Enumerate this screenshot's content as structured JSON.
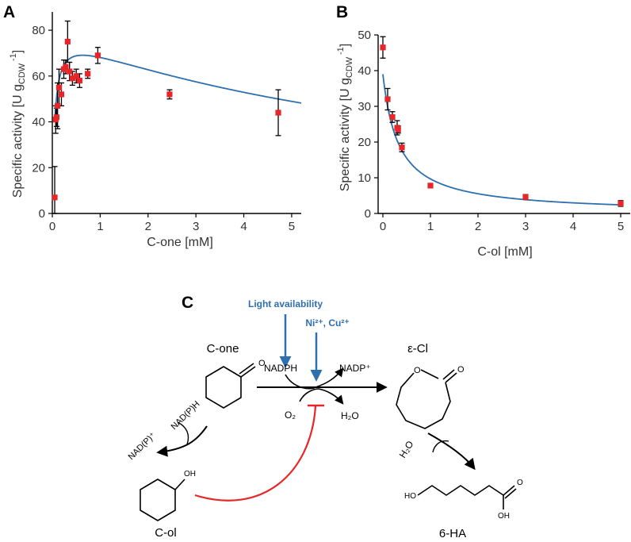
{
  "chart_data": [
    {
      "panel": "A",
      "type": "scatter",
      "xlabel": "C-one [mM]",
      "ylabel_main": "Specific activity [U g",
      "ylabel_sub": "CDW",
      "ylabel_sup": "-1",
      "ylabel_close": "]",
      "xlim": [
        0,
        5.2
      ],
      "ylim": [
        0,
        88
      ],
      "xticks": [
        0,
        1,
        2,
        3,
        4,
        5
      ],
      "yticks": [
        0,
        20,
        40,
        60,
        80
      ],
      "points": [
        {
          "x": 0.05,
          "y": 7,
          "err": 13.5
        },
        {
          "x": 0.07,
          "y": 41,
          "err": 6
        },
        {
          "x": 0.09,
          "y": 42,
          "err": 4
        },
        {
          "x": 0.11,
          "y": 47,
          "err": 10
        },
        {
          "x": 0.14,
          "y": 55,
          "err": 8
        },
        {
          "x": 0.19,
          "y": 52,
          "err": 5
        },
        {
          "x": 0.24,
          "y": 63,
          "err": 4
        },
        {
          "x": 0.28,
          "y": 64,
          "err": 3
        },
        {
          "x": 0.32,
          "y": 75,
          "err": 9
        },
        {
          "x": 0.36,
          "y": 62,
          "err": 4
        },
        {
          "x": 0.42,
          "y": 59,
          "err": 3
        },
        {
          "x": 0.5,
          "y": 60,
          "err": 3
        },
        {
          "x": 0.57,
          "y": 58,
          "err": 3
        },
        {
          "x": 0.74,
          "y": 61,
          "err": 2
        },
        {
          "x": 0.95,
          "y": 69,
          "err": 3.5
        },
        {
          "x": 2.45,
          "y": 52,
          "err": 2
        },
        {
          "x": 4.72,
          "y": 44,
          "err": 10
        }
      ],
      "fit": {
        "model": "substrate-inhibition",
        "vmax": 80,
        "km": 0.05,
        "ki": 8.0,
        "offset": 0
      }
    },
    {
      "panel": "B",
      "type": "scatter",
      "xlabel": "C-ol [mM]",
      "ylabel_main": "Specific activity [U g",
      "ylabel_sub": "CDW",
      "ylabel_sup": "-1",
      "ylabel_close": "]",
      "xlim": [
        -0.1,
        5.2
      ],
      "ylim": [
        0,
        50
      ],
      "xticks": [
        0,
        1,
        2,
        3,
        4,
        5
      ],
      "yticks": [
        0,
        10,
        20,
        30,
        40,
        50
      ],
      "points": [
        {
          "x": 0.0,
          "y": 46.5,
          "err": 3
        },
        {
          "x": 0.1,
          "y": 32,
          "err": 3
        },
        {
          "x": 0.2,
          "y": 27,
          "err": 1.5
        },
        {
          "x": 0.3,
          "y": 24,
          "err": 2
        },
        {
          "x": 0.32,
          "y": 23.5,
          "err": 1
        },
        {
          "x": 0.4,
          "y": 18.5,
          "err": 1.2
        },
        {
          "x": 1.0,
          "y": 7.8,
          "err": 0.6
        },
        {
          "x": 3.0,
          "y": 4.6,
          "err": 0.7
        },
        {
          "x": 5.0,
          "y": 2.8,
          "err": 0.8
        }
      ],
      "fit": {
        "model": "inhibition",
        "v0": 39,
        "ic50": 0.33
      }
    }
  ],
  "scheme": {
    "panel_letter": "C",
    "light_availability": "Light availability",
    "metal_ions": "Ni²⁺, Cu²⁺",
    "c_one": "C-one",
    "e_cl": "ε-Cl",
    "nadph": "NADPH",
    "nadp_plus": "NADP⁺",
    "o2": "O₂",
    "h2o": "H₂O",
    "nadph_branch": "NAD(P)H",
    "nadp_branch": "NAD(P)⁺",
    "c_ol": "C-ol",
    "oh": "OH",
    "h2o_hydrolysis": "H₂O",
    "six_ha": "6-HA",
    "ho": "HO",
    "acid_oh": "OH",
    "o_ketone": "O",
    "o_ring": "O",
    "o_lactone": "O",
    "o_acid": "O",
    "colors": {
      "blue": "#2e6fad",
      "red": "#e8262a",
      "black": "#000000"
    }
  }
}
